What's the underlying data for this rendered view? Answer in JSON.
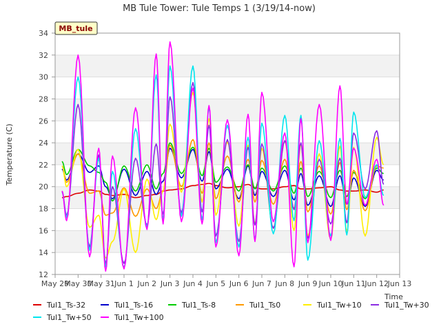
{
  "chart_data": {
    "type": "line",
    "title": "MB Tule Tower: Tule Temps 1 (3/19/14-now)",
    "ylabel": "Temperature (C)",
    "xlabel": "Time",
    "station_tag": "MB_tule",
    "ylim": [
      12,
      34
    ],
    "yticks": [
      12,
      14,
      16,
      18,
      20,
      22,
      24,
      26,
      28,
      30,
      32,
      34
    ],
    "xticks": [
      "May 29",
      "May 30",
      "May 31",
      "Jun 1",
      "Jun 2",
      "Jun 3",
      "Jun 4",
      "Jun 5",
      "Jun 6",
      "Jun 7",
      "Jun 8",
      "Jun 9",
      "Jun 10",
      "Jun 11",
      "Jun 12",
      "Jun 13"
    ],
    "xlim_days": [
      0,
      15
    ],
    "grid": true,
    "legend_position": "bottom",
    "x": [
      0.3,
      0.5,
      1.0,
      1.5,
      1.9,
      2.2,
      2.5,
      3.0,
      3.5,
      4.0,
      4.4,
      4.7,
      5.0,
      5.5,
      6.0,
      6.4,
      6.7,
      7.0,
      7.5,
      8.0,
      8.4,
      8.7,
      9.0,
      9.5,
      10.0,
      10.4,
      10.7,
      11.0,
      11.5,
      12.0,
      12.4,
      12.7,
      13.0,
      13.5,
      14.0,
      14.3
    ],
    "series": [
      {
        "name": "Tul1_Ts-32",
        "color": "#dd0000",
        "values": [
          19.0,
          19.1,
          19.4,
          19.7,
          19.6,
          19.3,
          19.2,
          19.3,
          19.0,
          19.2,
          19.3,
          19.6,
          19.7,
          19.8,
          20.1,
          20.2,
          20.3,
          20.1,
          19.9,
          20.0,
          20.2,
          19.9,
          19.8,
          19.8,
          20.0,
          20.1,
          19.8,
          19.8,
          19.9,
          20.0,
          19.7,
          19.6,
          19.6,
          19.7,
          19.5,
          19.7
        ]
      },
      {
        "name": "Tul1_Ts-16",
        "color": "#0000cc",
        "values": [
          21.6,
          20.6,
          23.0,
          21.3,
          21.9,
          20.0,
          18.9,
          21.6,
          19.2,
          21.4,
          19.3,
          20.5,
          23.5,
          20.8,
          23.4,
          20.5,
          23.2,
          19.8,
          21.6,
          18.9,
          21.9,
          19.2,
          21.4,
          19.1,
          21.5,
          18.8,
          21.2,
          18.3,
          21.0,
          18.2,
          21.0,
          18.4,
          20.8,
          18.2,
          21.5,
          20.6
        ]
      },
      {
        "name": "Tul1_Ts-8",
        "color": "#00cc00",
        "values": [
          22.3,
          21.1,
          23.4,
          21.9,
          21.3,
          20.4,
          18.7,
          21.9,
          19.6,
          22.0,
          19.8,
          21.2,
          24.0,
          21.2,
          23.6,
          21.0,
          23.5,
          20.4,
          21.8,
          19.6,
          22.0,
          19.8,
          21.7,
          19.6,
          21.9,
          19.4,
          21.7,
          19.1,
          21.4,
          19.0,
          21.5,
          19.1,
          21.3,
          18.9,
          21.7,
          21.2
        ]
      },
      {
        "name": "Tul1_Ts0",
        "color": "#ff9900",
        "values": [
          21.9,
          20.4,
          23.0,
          19.4,
          19.6,
          17.4,
          17.6,
          19.9,
          17.3,
          19.8,
          18.0,
          19.6,
          23.8,
          20.0,
          24.3,
          19.4,
          24.0,
          18.9,
          22.8,
          18.6,
          22.5,
          18.6,
          22.4,
          18.4,
          22.5,
          18.0,
          22.3,
          17.7,
          21.9,
          17.5,
          22.2,
          17.9,
          21.5,
          17.8,
          21.9,
          21.7
        ]
      },
      {
        "name": "Tul1_Tw+10",
        "color": "#ffee00",
        "values": [
          21.9,
          20.0,
          23.4,
          16.3,
          17.4,
          13.5,
          15.0,
          19.8,
          14.0,
          20.7,
          17.0,
          19.6,
          25.7,
          19.5,
          28.6,
          18.6,
          26.2,
          17.4,
          24.1,
          16.4,
          23.8,
          16.6,
          23.5,
          16.2,
          24.2,
          16.0,
          23.9,
          15.5,
          23.0,
          15.2,
          23.7,
          15.9,
          23.6,
          15.5,
          24.5,
          22.0
        ]
      },
      {
        "name": "Tul1_Tw+30",
        "color": "#8a2be2",
        "values": [
          19.6,
          17.4,
          27.5,
          14.5,
          22.9,
          13.0,
          20.0,
          13.0,
          22.6,
          16.5,
          23.9,
          17.5,
          28.2,
          17.6,
          29.5,
          17.7,
          25.6,
          15.5,
          24.3,
          15.0,
          23.6,
          16.5,
          23.9,
          16.2,
          24.2,
          17.9,
          24.0,
          15.3,
          22.5,
          16.6,
          22.6,
          16.7,
          24.9,
          19.8,
          25.1,
          20.2
        ]
      },
      {
        "name": "Tul1_Tw+50",
        "color": "#00e5ee",
        "values": [
          19.5,
          17.2,
          30.0,
          14.2,
          22.6,
          12.7,
          21.4,
          12.6,
          25.3,
          16.3,
          30.2,
          17.0,
          31.0,
          17.3,
          31.0,
          17.0,
          27.2,
          14.9,
          25.6,
          14.5,
          24.5,
          15.2,
          25.8,
          15.7,
          26.5,
          16.9,
          26.5,
          13.3,
          24.2,
          15.5,
          24.4,
          15.6,
          26.8,
          19.0,
          22.0,
          19.2
        ]
      },
      {
        "name": "Tul1_Tw+100",
        "color": "#ff00ff",
        "values": [
          19.6,
          16.9,
          32.0,
          13.6,
          23.5,
          12.3,
          22.8,
          12.5,
          27.2,
          16.1,
          32.1,
          16.6,
          33.2,
          16.8,
          29.0,
          16.6,
          27.4,
          14.5,
          26.1,
          13.7,
          26.6,
          15.0,
          28.6,
          16.8,
          24.9,
          12.7,
          26.2,
          14.9,
          27.5,
          15.1,
          29.2,
          18.4,
          23.5,
          18.3,
          22.5,
          18.3
        ]
      }
    ]
  }
}
